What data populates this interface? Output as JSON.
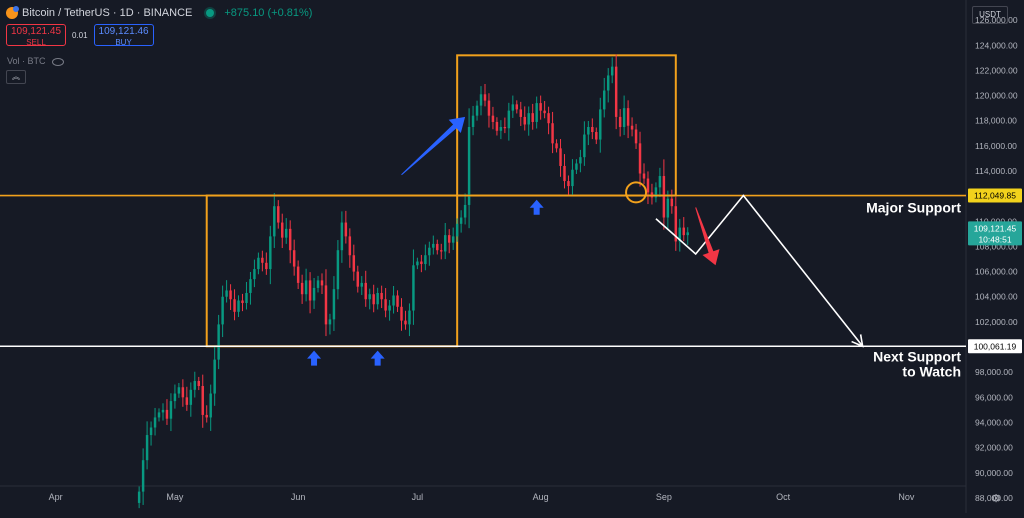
{
  "header": {
    "symbol": "Bitcoin / TetherUS · 1D · BINANCE",
    "change": "+875.10 (+0.81%)"
  },
  "trade": {
    "sell_price": "109,121.45",
    "sell_label": "SELL",
    "spread": "0.01",
    "buy_price": "109,121.46",
    "buy_label": "BUY"
  },
  "volume_label": "Vol · BTC",
  "collapse_glyph": "︽",
  "currency": "USDT",
  "settings_glyph": "⚙",
  "colors": {
    "background": "#161a25",
    "up": "#089981",
    "down": "#f23645",
    "box": "#f2a11c",
    "support_line": "#f2a11c",
    "next_support_line": "#ffffff",
    "arrow_blue": "#2962ff",
    "arrow_red": "#f23645",
    "price_tag": "#26a69a"
  },
  "chart_data": {
    "type": "candlestick",
    "symbol": "BTCUSDT",
    "interval": "1D",
    "x_ticks": [
      "Apr",
      "May",
      "Jun",
      "Jul",
      "Aug",
      "Sep",
      "Oct",
      "Nov"
    ],
    "y_ticks": [
      "88,000.00",
      "90,000.00",
      "92,000.00",
      "94,000.00",
      "96,000.00",
      "98,000.00",
      "100,000.00",
      "102,000.00",
      "104,000.00",
      "106,000.00",
      "108,000.00",
      "110,000.00",
      "112,000.00",
      "114,000.00",
      "116,000.00",
      "118,000.00",
      "120,000.00",
      "122,000.00",
      "124,000.00",
      "126,000.00"
    ],
    "ylim": [
      86800,
      127600
    ],
    "date_range": [
      "2025-03-18",
      "2025-11-16"
    ],
    "first_candle_date": "2025-04-22",
    "closes": [
      88500,
      91000,
      93000,
      93600,
      94400,
      94800,
      95000,
      94300,
      95700,
      96300,
      96800,
      96000,
      95400,
      96600,
      97300,
      96900,
      94600,
      94400,
      96300,
      99000,
      101800,
      104000,
      104500,
      103800,
      102800,
      103700,
      103500,
      104300,
      105400,
      106200,
      107100,
      106700,
      106200,
      108800,
      111200,
      109900,
      108700,
      109400,
      107700,
      106400,
      105100,
      104200,
      105300,
      103700,
      104700,
      105300,
      104900,
      101800,
      102200,
      104600,
      107700,
      109900,
      108800,
      107300,
      106000,
      104800,
      105100,
      103800,
      104200,
      103400,
      104300,
      103800,
      102900,
      103300,
      104100,
      103200,
      102100,
      101800,
      102900,
      106500,
      106800,
      106600,
      107300,
      107900,
      108200,
      107700,
      107600,
      108900,
      108300,
      108800,
      109800,
      110300,
      111300,
      117500,
      118400,
      119200,
      120100,
      119600,
      118400,
      117900,
      117200,
      117500,
      117400,
      118800,
      119300,
      118900,
      118300,
      117700,
      118600,
      117900,
      119400,
      118800,
      118600,
      117800,
      116200,
      115800,
      114400,
      113200,
      112800,
      114100,
      114600,
      115100,
      116900,
      117500,
      117100,
      116500,
      118900,
      120400,
      121600,
      122300,
      118300,
      117500,
      119000,
      117600,
      117300,
      116200,
      113800,
      113400,
      112300,
      111900,
      112700,
      113600,
      110300,
      111800,
      111200,
      108400,
      109500,
      108900,
      109121
    ],
    "current_price": "109,121.45",
    "current_countdown": "10:48:51",
    "levels": [
      {
        "price": 112049.85,
        "label": "112,049.85"
      },
      {
        "price": 100061.19,
        "label": "100,061.19"
      }
    ],
    "annotations": {
      "major_support": "Major Support",
      "next_support_line1": "Next Support",
      "next_support_line2": "to Watch"
    },
    "boxes": [
      {
        "start": "2025-05-09",
        "end": "2025-07-11",
        "low": 100061,
        "high": 112049
      },
      {
        "start": "2025-07-11",
        "end": "2025-09-04",
        "low": 112049,
        "high": 123200
      }
    ],
    "projection": [
      {
        "date": "2025-08-30",
        "price": 110200
      },
      {
        "date": "2025-09-09",
        "price": 107400
      },
      {
        "date": "2025-09-21",
        "price": 112049
      },
      {
        "date": "2025-10-21",
        "price": 100061
      }
    ],
    "blue_arrows_up": [
      {
        "date": "2025-06-05",
        "price": 99000
      },
      {
        "date": "2025-06-21",
        "price": 99000
      },
      {
        "date": "2025-07-31",
        "price": 111000
      }
    ],
    "blue_arrow_diagonal": {
      "from": {
        "date": "2025-06-27",
        "price": 113700
      },
      "to": {
        "date": "2025-07-13",
        "price": 118300
      }
    },
    "red_arrow_diagonal": {
      "from": {
        "date": "2025-09-09",
        "price": 111100
      },
      "to": {
        "date": "2025-09-14",
        "price": 106500
      }
    },
    "circle_marker": {
      "date": "2025-08-25",
      "price": 112300
    }
  }
}
